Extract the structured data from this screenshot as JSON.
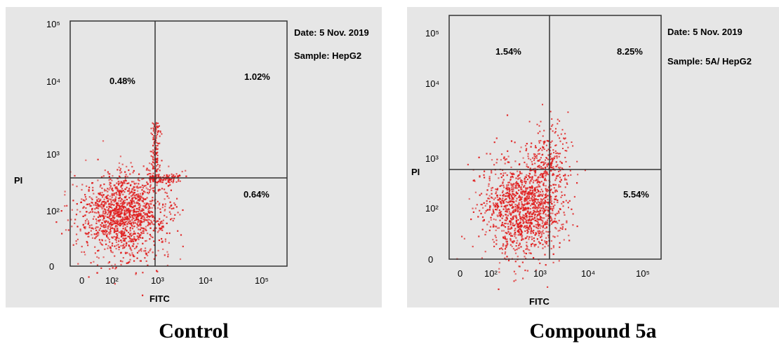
{
  "chart_data": [
    {
      "type": "scatter",
      "title": "",
      "caption": "Control",
      "xlabel": "FITC",
      "ylabel": "PI",
      "x_scale": "log",
      "y_scale": "log",
      "x_ticks": [
        "0",
        "10²",
        "10³",
        "10⁴",
        "10⁵"
      ],
      "y_ticks": [
        "0",
        "10²",
        "10³",
        "10⁴",
        "10⁵"
      ],
      "x_tick_values": [
        1,
        100,
        1000,
        10000,
        100000
      ],
      "y_tick_values": [
        1,
        100,
        1000,
        10000,
        100000
      ],
      "annotations": [
        "Date: 5 Nov. 2019",
        "Sample: HepG2"
      ],
      "gate": {
        "x": 900,
        "y": 400
      },
      "quadrants": {
        "upper_left": "0.48%",
        "upper_right": "1.02%",
        "lower_left": "",
        "lower_right": "0.64%"
      },
      "cluster": {
        "x_center": 150,
        "y_center": 150
      },
      "dot_color": "#e01b1b"
    },
    {
      "type": "scatter",
      "title": "",
      "caption": "Compound 5a",
      "xlabel": "FITC",
      "ylabel": "PI",
      "x_scale": "log",
      "y_scale": "log",
      "x_ticks": [
        "0",
        "10²",
        "10³",
        "10⁴",
        "10⁵"
      ],
      "y_ticks": [
        "0",
        "10²",
        "10³",
        "10⁴",
        "10⁵"
      ],
      "x_tick_values": [
        1,
        100,
        1000,
        10000,
        100000
      ],
      "y_tick_values": [
        1,
        100,
        1000,
        10000,
        100000
      ],
      "annotations": [
        "Date: 5 Nov. 2019",
        "Sample: 5A/ HepG2"
      ],
      "gate": {
        "x": 1300,
        "y": 650
      },
      "quadrants": {
        "upper_left": "1.54%",
        "upper_right": "8.25%",
        "lower_left": "",
        "lower_right": "5.54%"
      },
      "cluster": {
        "x_center": 500,
        "y_center": 220
      },
      "dot_color": "#e01b1b"
    }
  ]
}
